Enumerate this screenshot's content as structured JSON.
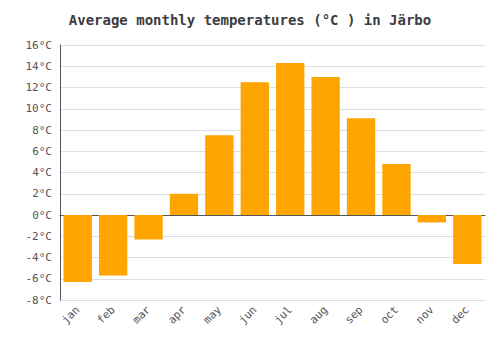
{
  "chart_data": {
    "type": "bar",
    "title": "Average monthly temperatures (°C ) in Järbo",
    "categories": [
      "jan",
      "feb",
      "mar",
      "apr",
      "may",
      "jun",
      "jul",
      "aug",
      "sep",
      "oct",
      "nov",
      "dec"
    ],
    "values": [
      -6.3,
      -5.7,
      -2.3,
      2.0,
      7.5,
      12.5,
      14.3,
      13.0,
      9.1,
      4.8,
      -0.7,
      -4.6
    ],
    "color": "#FFA500",
    "ylim": [
      -8,
      16
    ],
    "yticks": [
      {
        "value": -8,
        "label": "-8°C"
      },
      {
        "value": -6,
        "label": "-6°C"
      },
      {
        "value": -4,
        "label": "-4°C"
      },
      {
        "value": -2,
        "label": "-2°C"
      },
      {
        "value": 0,
        "label": "0°C"
      },
      {
        "value": 2,
        "label": "2°C"
      },
      {
        "value": 4,
        "label": "4°C"
      },
      {
        "value": 6,
        "label": "6°C"
      },
      {
        "value": 8,
        "label": "8°C"
      },
      {
        "value": 10,
        "label": "10°C"
      },
      {
        "value": 12,
        "label": "12°C"
      },
      {
        "value": 14,
        "label": "14°C"
      },
      {
        "value": 16,
        "label": "16°C"
      }
    ],
    "grid": true
  }
}
